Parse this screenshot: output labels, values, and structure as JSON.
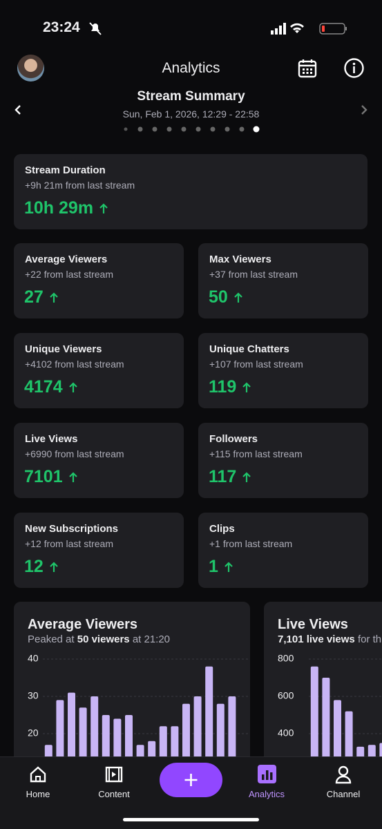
{
  "status_bar": {
    "time": "23:24"
  },
  "header": {
    "title": "Analytics"
  },
  "summary": {
    "title": "Stream Summary",
    "date": "Sun, Feb 1, 2026, 12:29 - 22:58"
  },
  "cards": [
    {
      "label": "Stream Duration",
      "change": "+9h 21m from last stream",
      "value": "10h 29m"
    },
    {
      "label": "Average Viewers",
      "change": "+22 from last stream",
      "value": "27"
    },
    {
      "label": "Max Viewers",
      "change": "+37 from last stream",
      "value": "50"
    },
    {
      "label": "Unique Viewers",
      "change": "+4102 from last stream",
      "value": "4174"
    },
    {
      "label": "Unique Chatters",
      "change": "+107 from last stream",
      "value": "119"
    },
    {
      "label": "Live Views",
      "change": "+6990 from last stream",
      "value": "7101"
    },
    {
      "label": "Followers",
      "change": "+115 from last stream",
      "value": "117"
    },
    {
      "label": "New Subscriptions",
      "change": "+12 from last stream",
      "value": "12"
    },
    {
      "label": "Clips",
      "change": "+1 from last stream",
      "value": "1"
    }
  ],
  "chart_data": [
    {
      "type": "bar",
      "title": "Average Viewers",
      "subtitle_prefix": "Peaked at",
      "subtitle_bold": "50 viewers",
      "subtitle_suffix": "at 21:20",
      "values": [
        17,
        29,
        31,
        27,
        30,
        25,
        24,
        25,
        17,
        18,
        22,
        22,
        28,
        30,
        38,
        28,
        30
      ],
      "color": "#c8b5f5",
      "ylim": [
        0,
        40
      ],
      "yticks": [
        20,
        30,
        40
      ],
      "grid": true
    },
    {
      "type": "bar",
      "title": "Live Views",
      "subtitle_prefix": "",
      "subtitle_bold": "7,101 live views",
      "subtitle_suffix": "for th",
      "values": [
        760,
        700,
        580,
        520,
        330,
        340,
        350
      ],
      "color": "#c8b5f5",
      "ylim": [
        0,
        800
      ],
      "yticks": [
        400,
        600,
        800
      ],
      "grid": true
    }
  ],
  "nav": {
    "items": [
      "Home",
      "Content",
      "Analytics",
      "Channel"
    ]
  }
}
